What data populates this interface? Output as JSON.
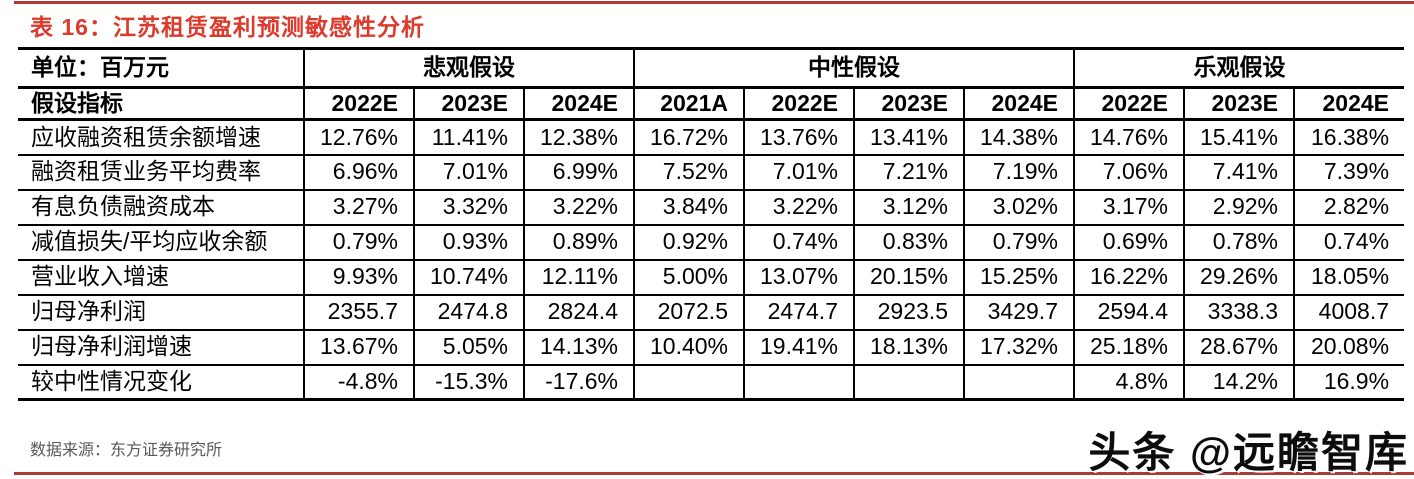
{
  "page": {
    "title": "表 16：江苏租赁盈利预测敏感性分析",
    "source_note": "数据来源：东方证券研究所",
    "watermark": "头条 @远瞻智库"
  },
  "colors": {
    "title_red": "#DC3A2C",
    "rule_red": "#A93B38",
    "source_gray": "#595959",
    "table_border": "#000000"
  },
  "table": {
    "unit_label": "单位：百万元",
    "indicator_label": "假设指标",
    "groups": [
      {
        "label": "悲观假设",
        "years": [
          "2022E",
          "2023E",
          "2024E"
        ]
      },
      {
        "label": "中性假设",
        "years": [
          "2021A",
          "2022E",
          "2023E",
          "2024E"
        ]
      },
      {
        "label": "乐观假设",
        "years": [
          "2022E",
          "2023E",
          "2024E"
        ]
      }
    ],
    "rows": [
      {
        "label": "应收融资租赁余额增速",
        "values": [
          "12.76%",
          "11.41%",
          "12.38%",
          "16.72%",
          "13.76%",
          "13.41%",
          "14.38%",
          "14.76%",
          "15.41%",
          "16.38%"
        ]
      },
      {
        "label": "融资租赁业务平均费率",
        "values": [
          "6.96%",
          "7.01%",
          "6.99%",
          "7.52%",
          "7.01%",
          "7.21%",
          "7.19%",
          "7.06%",
          "7.41%",
          "7.39%"
        ]
      },
      {
        "label": "有息负债融资成本",
        "values": [
          "3.27%",
          "3.32%",
          "3.22%",
          "3.84%",
          "3.22%",
          "3.12%",
          "3.02%",
          "3.17%",
          "2.92%",
          "2.82%"
        ]
      },
      {
        "label": "减值损失/平均应收余额",
        "values": [
          "0.79%",
          "0.93%",
          "0.89%",
          "0.92%",
          "0.74%",
          "0.83%",
          "0.79%",
          "0.69%",
          "0.78%",
          "0.74%"
        ]
      },
      {
        "label": "营业收入增速",
        "values": [
          "9.93%",
          "10.74%",
          "12.11%",
          "5.00%",
          "13.07%",
          "20.15%",
          "15.25%",
          "16.22%",
          "29.26%",
          "18.05%"
        ]
      },
      {
        "label": "归母净利润",
        "values": [
          "2355.7",
          "2474.8",
          "2824.4",
          "2072.5",
          "2474.7",
          "2923.5",
          "3429.7",
          "2594.4",
          "3338.3",
          "4008.7"
        ]
      },
      {
        "label": "归母净利润增速",
        "values": [
          "13.67%",
          "5.05%",
          "14.13%",
          "10.40%",
          "19.41%",
          "18.13%",
          "17.32%",
          "25.18%",
          "28.67%",
          "20.08%"
        ]
      },
      {
        "label": "较中性情况变化",
        "values": [
          "-4.8%",
          "-15.3%",
          "-17.6%",
          "",
          "",
          "",
          "",
          "4.8%",
          "14.2%",
          "16.9%"
        ]
      }
    ]
  }
}
